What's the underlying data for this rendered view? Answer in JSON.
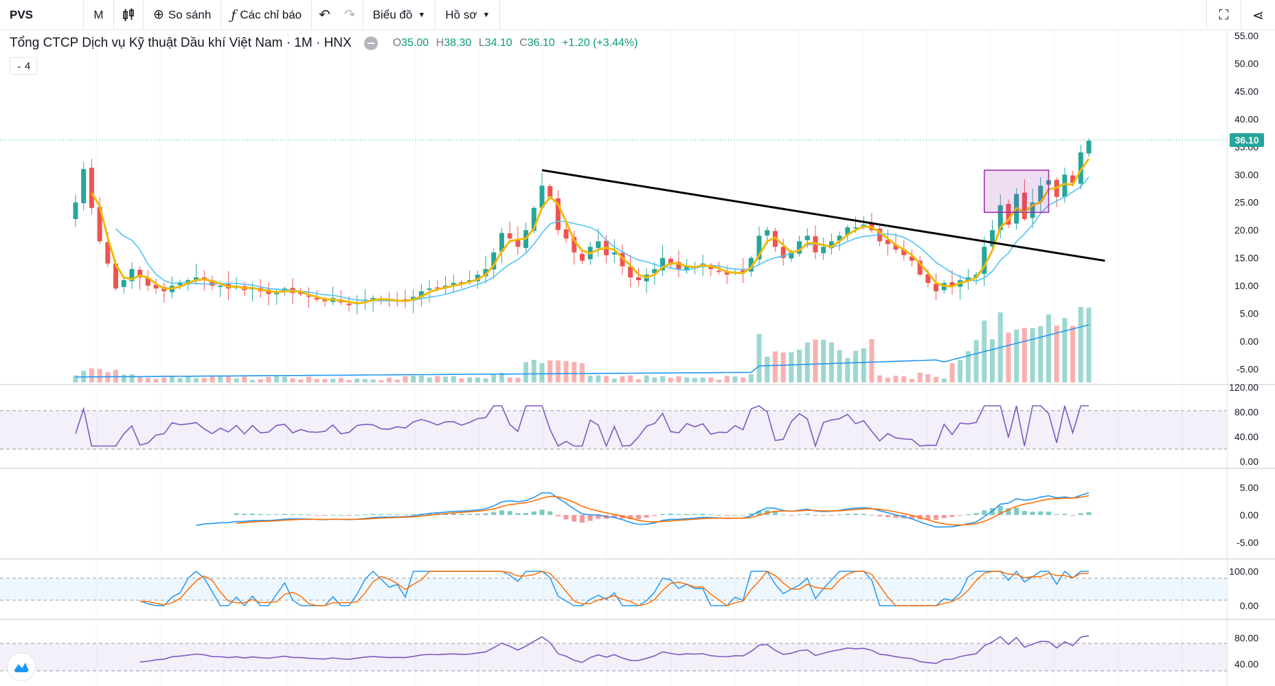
{
  "toolbar": {
    "symbol": "PVS",
    "interval": "M",
    "compare_label": "So sánh",
    "indicators_label": "Các chỉ báo",
    "chart_label": "Biểu đồ",
    "profile_label": "Hồ sơ",
    "icons": [
      "candles-icon",
      "plus-circle-icon",
      "fx-icon",
      "undo-icon",
      "redo-icon",
      "fullscreen-icon",
      "share-icon"
    ]
  },
  "legend": {
    "title": "Tổng CTCP Dịch vụ Kỹ thuật Dầu khí Việt Nam · 1M · HNX",
    "open_key": "O",
    "open": "35.00",
    "high_key": "H",
    "high": "38.30",
    "low_key": "L",
    "low": "34.10",
    "close_key": "C",
    "close": "36.10",
    "change": "+1.20 (+3.44%)",
    "collapsed_count": "4"
  },
  "colors": {
    "up": "#26a69a",
    "down": "#ef5350",
    "ma_fast": "#f0b90b",
    "ma_slow": "#4fc3f7",
    "trendline": "#000000",
    "box": "#9c27b0",
    "rsi": "#7e57c2",
    "macd": "#2196f3",
    "signal": "#ff6d00"
  },
  "price_axis": {
    "ticks": [
      "55.00",
      "50.00",
      "45.00",
      "40.00",
      "35.00",
      "30.00",
      "25.00",
      "20.00",
      "15.00",
      "10.00",
      "5.00",
      "0.00",
      "-5.00"
    ],
    "last_price": "36.10"
  },
  "rsi_axis": {
    "ticks": [
      "120.00",
      "80.00",
      "40.00",
      "0.00"
    ]
  },
  "macd_axis": {
    "ticks": [
      "5.00",
      "0.00",
      "-5.00"
    ]
  },
  "stoch_axis": {
    "ticks": [
      "100.00",
      "0.00"
    ]
  },
  "pane5_axis": {
    "ticks": [
      "80.00",
      "40.00"
    ]
  },
  "chart_data": {
    "type": "candlestick",
    "interval": "1M",
    "closes": [
      25,
      31,
      24,
      18,
      14,
      9.5,
      11,
      13,
      11.5,
      10,
      9.5,
      9,
      10,
      10.5,
      11,
      11.5,
      11,
      10,
      10,
      9.5,
      10,
      9.2,
      9.7,
      9,
      8.5,
      9,
      9.5,
      8.7,
      8.5,
      8,
      7.5,
      7.2,
      7.8,
      7,
      6.5,
      7,
      7.5,
      7.8,
      7.5,
      7.2,
      7.3,
      7.2,
      8,
      9,
      9.5,
      9.5,
      10,
      10.5,
      10.5,
      11,
      12,
      13,
      16,
      19.5,
      18.5,
      17,
      20,
      24,
      28,
      26,
      20,
      18.5,
      16,
      14.5,
      17,
      18,
      15.5,
      16,
      13.5,
      11.5,
      11,
      12,
      13,
      15,
      14,
      13,
      13.5,
      13.5,
      14,
      13,
      12.5,
      12,
      12.5,
      12.3,
      15,
      19,
      20,
      17,
      15,
      16,
      18,
      19,
      16,
      17,
      18,
      19,
      20.5,
      20.5,
      21,
      20,
      18,
      17.5,
      16.5,
      15.5,
      14.5,
      12,
      10.5,
      9,
      10.5,
      10,
      11,
      11.5,
      12,
      17,
      20,
      24.5,
      21,
      26.5,
      22,
      25,
      28,
      29,
      26,
      30,
      28.5,
      34,
      36.1
    ],
    "macd_line_hint": "MACD and signal lines shown in 3rd pane",
    "annotations": [
      "descending trendline",
      "rectangle box"
    ]
  }
}
